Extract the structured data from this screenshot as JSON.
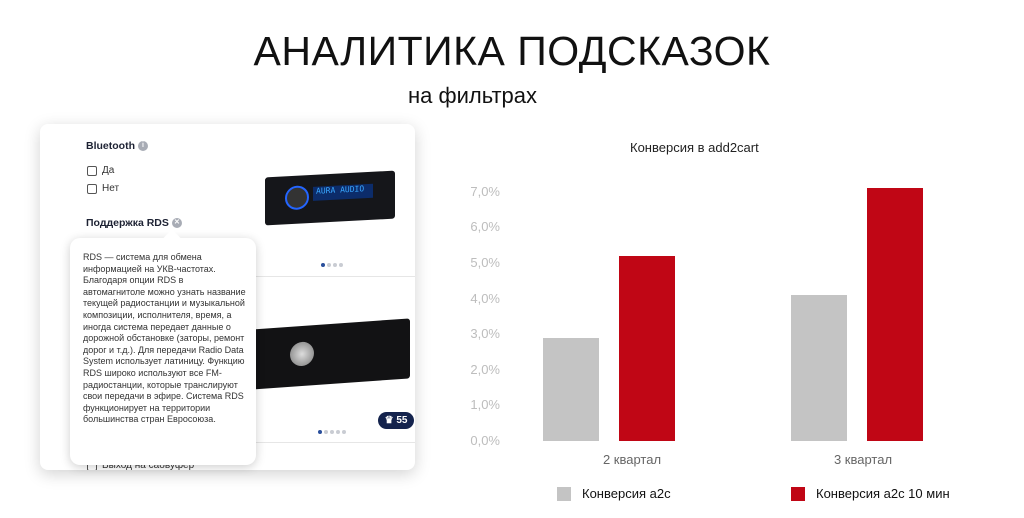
{
  "header": {
    "title": "АНАЛИТИКА ПОДСКАЗОК",
    "subtitle": "на фильтрах"
  },
  "filter_panel": {
    "bluetooth_label": "Bluetooth",
    "options": [
      "Да",
      "Нет"
    ],
    "rds_label": "Поддержка RDS",
    "bottom_option": "Выход на сабвуфер",
    "badge_count": "55",
    "tooltip": "RDS — система для обмена информацией на УКВ-частотах. Благодаря опции RDS в автомагнитоле можно узнать название текущей радиостанции и музыкальной композиции, исполнителя, время, а иногда система передает данные о дорожной обстановке (заторы, ремонт дорог и т.д.). Для передачи Radio Data System использует латиницу. Функцию RDS широко используют все FM-радиостанции, которые транслируют свои передачи в эфире. Система RDS функционирует на территории большинства стран Евросоюза.",
    "product_display_text": "AURA AUDIO"
  },
  "chart_data": {
    "type": "bar",
    "title": "Конверсия в add2cart",
    "categories": [
      "2 квартал",
      "3 квартал"
    ],
    "series": [
      {
        "name": "Конверсия а2с",
        "values": [
          2.9,
          4.1
        ],
        "color": "#c4c4c4"
      },
      {
        "name": "Конверсия а2с 10 мин",
        "values": [
          5.2,
          7.1
        ],
        "color": "#c00615"
      }
    ],
    "yticks": [
      "0,0%",
      "1,0%",
      "2,0%",
      "3,0%",
      "4,0%",
      "5,0%",
      "6,0%",
      "7,0%"
    ],
    "ylim": [
      0,
      7
    ],
    "grid": false,
    "legend": "bottom"
  }
}
